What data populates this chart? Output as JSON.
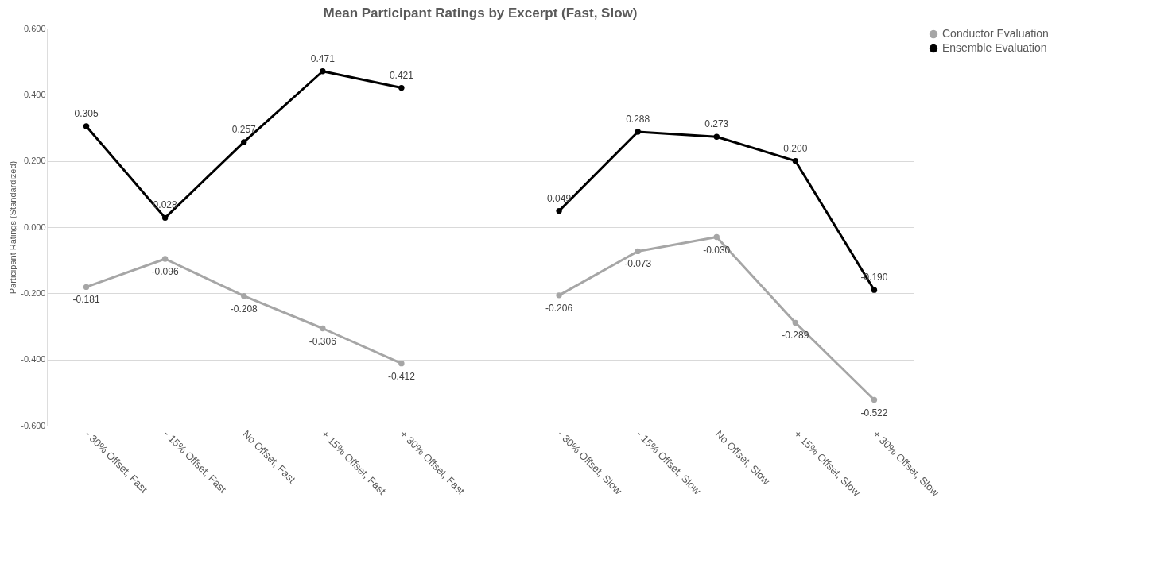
{
  "chart_data": {
    "type": "line",
    "title": "Mean Participant Ratings by Excerpt (Fast, Slow)",
    "ylabel": "Participant Ratings (Standardized)",
    "categories": [
      "- 30% Offset, Fast",
      "- 15% Offset, Fast",
      "No Offset, Fast",
      "+ 15% Offset, Fast",
      "+ 30% Offset, Fast",
      null,
      "- 30% Offset, Slow",
      "- 15% Offset, Slow",
      "No Offset, Slow",
      "+ 15% Offset, Slow",
      "+ 30% Offset, Slow"
    ],
    "series": [
      {
        "name": "Conductor Evaluation",
        "color": "#a6a6a6",
        "values": [
          -0.181,
          -0.096,
          -0.208,
          -0.306,
          -0.412,
          null,
          -0.206,
          -0.073,
          -0.03,
          -0.289,
          -0.522
        ],
        "value_labels": [
          "-0.181",
          "-0.096",
          "-0.208",
          "-0.306",
          "-0.412",
          null,
          "-0.206",
          "-0.073",
          "-0.030",
          "-0.289",
          "-0.522"
        ]
      },
      {
        "name": "Ensemble Evaluation",
        "color": "#000000",
        "values": [
          0.305,
          0.028,
          0.257,
          0.471,
          0.421,
          null,
          0.049,
          0.288,
          0.273,
          0.2,
          -0.19
        ],
        "value_labels": [
          "0.305",
          "0.028",
          "0.257",
          "0.471",
          "0.421",
          null,
          "0.049",
          "0.288",
          "0.273",
          "0.200",
          "-0.190"
        ]
      }
    ],
    "ylim": [
      -0.6,
      0.6
    ],
    "yticks": [
      {
        "value": -0.6,
        "label": "-0.600"
      },
      {
        "value": -0.4,
        "label": "-0.400"
      },
      {
        "value": -0.2,
        "label": "-0.200"
      },
      {
        "value": 0,
        "label": "0.000"
      },
      {
        "value": 0.2,
        "label": "0.200"
      },
      {
        "value": 0.4,
        "label": "0.400"
      },
      {
        "value": 0.6,
        "label": "0.600"
      }
    ],
    "grid": "y",
    "legend": "top right",
    "marker": "circle",
    "line_style": "solid"
  }
}
